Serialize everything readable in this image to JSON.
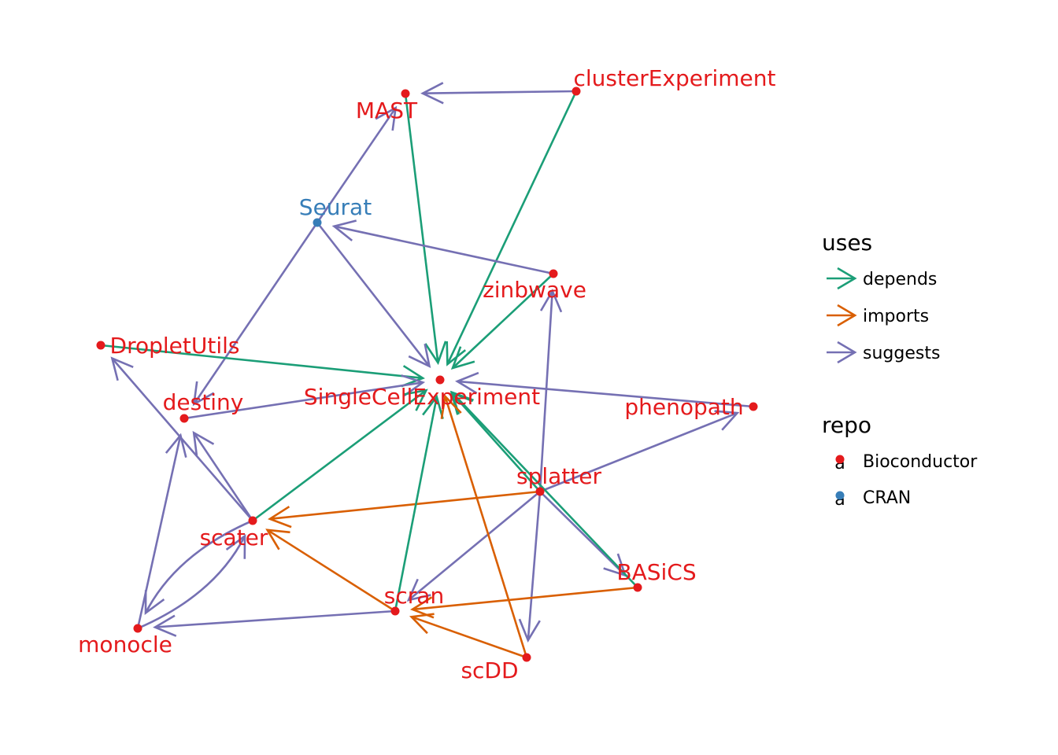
{
  "colors": {
    "edge": {
      "depends": "#1b9e77",
      "imports": "#d95f02",
      "suggests": "#7570b3"
    },
    "repo": {
      "Bioconductor": "#e41a1c",
      "CRAN": "#377eb8"
    }
  },
  "nodes": [
    {
      "id": "MAST",
      "label": "MAST",
      "repo": "Bioconductor"
    },
    {
      "id": "clusterExperiment",
      "label": "clusterExperiment",
      "repo": "Bioconductor"
    },
    {
      "id": "Seurat",
      "label": "Seurat",
      "repo": "CRAN"
    },
    {
      "id": "zinbwave",
      "label": "zinbwave",
      "repo": "Bioconductor"
    },
    {
      "id": "DropletUtils",
      "label": "DropletUtils",
      "repo": "Bioconductor"
    },
    {
      "id": "SingleCellExperiment",
      "label": "SingleCellExperiment",
      "repo": "Bioconductor"
    },
    {
      "id": "destiny",
      "label": "destiny",
      "repo": "Bioconductor"
    },
    {
      "id": "phenopath",
      "label": "phenopath",
      "repo": "Bioconductor"
    },
    {
      "id": "splatter",
      "label": "splatter",
      "repo": "Bioconductor"
    },
    {
      "id": "scater",
      "label": "scater",
      "repo": "Bioconductor"
    },
    {
      "id": "BASiCS",
      "label": "BASiCS",
      "repo": "Bioconductor"
    },
    {
      "id": "scran",
      "label": "scran",
      "repo": "Bioconductor"
    },
    {
      "id": "monocle",
      "label": "monocle",
      "repo": "Bioconductor"
    },
    {
      "id": "scDD",
      "label": "scDD",
      "repo": "Bioconductor"
    }
  ],
  "edges": [
    {
      "from": "clusterExperiment",
      "to": "MAST",
      "uses": "suggests"
    },
    {
      "from": "clusterExperiment",
      "to": "SingleCellExperiment",
      "uses": "depends"
    },
    {
      "from": "MAST",
      "to": "SingleCellExperiment",
      "uses": "depends"
    },
    {
      "from": "Seurat",
      "to": "MAST",
      "uses": "suggests"
    },
    {
      "from": "Seurat",
      "to": "SingleCellExperiment",
      "uses": "suggests"
    },
    {
      "from": "Seurat",
      "to": "destiny",
      "uses": "suggests"
    },
    {
      "from": "zinbwave",
      "to": "Seurat",
      "uses": "suggests"
    },
    {
      "from": "zinbwave",
      "to": "SingleCellExperiment",
      "uses": "depends"
    },
    {
      "from": "DropletUtils",
      "to": "SingleCellExperiment",
      "uses": "depends"
    },
    {
      "from": "destiny",
      "to": "SingleCellExperiment",
      "uses": "suggests"
    },
    {
      "from": "phenopath",
      "to": "SingleCellExperiment",
      "uses": "suggests"
    },
    {
      "from": "splatter",
      "to": "phenopath",
      "uses": "suggests"
    },
    {
      "from": "splatter",
      "to": "SingleCellExperiment",
      "uses": "depends"
    },
    {
      "from": "splatter",
      "to": "scater",
      "uses": "imports"
    },
    {
      "from": "splatter",
      "to": "zinbwave",
      "uses": "suggests"
    },
    {
      "from": "splatter",
      "to": "scDD",
      "uses": "suggests"
    },
    {
      "from": "splatter",
      "to": "scran",
      "uses": "suggests"
    },
    {
      "from": "splatter",
      "to": "BASiCS",
      "uses": "suggests"
    },
    {
      "from": "BASiCS",
      "to": "SingleCellExperiment",
      "uses": "depends"
    },
    {
      "from": "BASiCS",
      "to": "scran",
      "uses": "imports"
    },
    {
      "from": "scater",
      "to": "SingleCellExperiment",
      "uses": "depends"
    },
    {
      "from": "scater",
      "to": "DropletUtils",
      "uses": "suggests"
    },
    {
      "from": "scater",
      "to": "destiny",
      "uses": "suggests"
    },
    {
      "from": "scater",
      "to": "monocle",
      "uses": "suggests",
      "curve": 1
    },
    {
      "from": "monocle",
      "to": "scater",
      "uses": "suggests",
      "curve": 1
    },
    {
      "from": "monocle",
      "to": "destiny",
      "uses": "suggests"
    },
    {
      "from": "scran",
      "to": "SingleCellExperiment",
      "uses": "depends"
    },
    {
      "from": "scran",
      "to": "scater",
      "uses": "imports"
    },
    {
      "from": "scran",
      "to": "monocle",
      "uses": "suggests"
    },
    {
      "from": "scDD",
      "to": "scran",
      "uses": "imports"
    },
    {
      "from": "scDD",
      "to": "SingleCellExperiment",
      "uses": "imports"
    }
  ],
  "legend": {
    "uses_title": "uses",
    "uses_items": [
      {
        "key": "depends",
        "label": "depends"
      },
      {
        "key": "imports",
        "label": "imports"
      },
      {
        "key": "suggests",
        "label": "suggests"
      }
    ],
    "repo_title": "repo",
    "repo_items": [
      {
        "key": "Bioconductor",
        "label": "Bioconductor",
        "glyph": "a"
      },
      {
        "key": "CRAN",
        "label": "CRAN",
        "glyph": "a"
      }
    ]
  }
}
